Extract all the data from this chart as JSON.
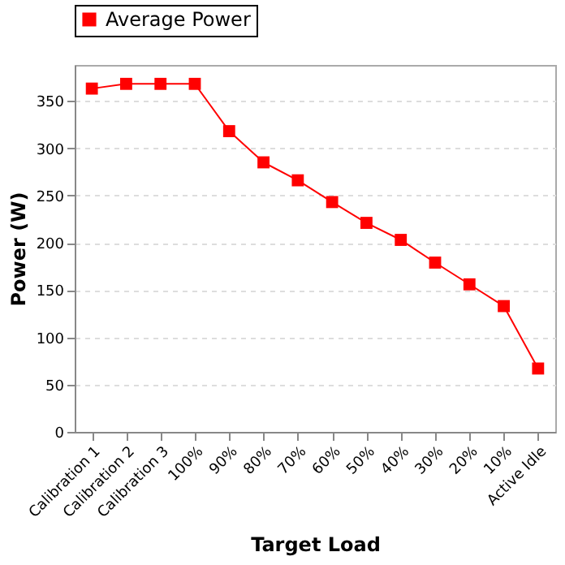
{
  "chart_data": {
    "type": "line",
    "xlabel": "Target Load",
    "ylabel": "Power (W)",
    "categories": [
      "Calibration 1",
      "Calibration 2",
      "Calibration 3",
      "100%",
      "90%",
      "80%",
      "70%",
      "60%",
      "50%",
      "40%",
      "30%",
      "20%",
      "10%",
      "Active Idle"
    ],
    "series": [
      {
        "name": "Average Power",
        "color": "#ff0000",
        "values": [
          363,
          368,
          368,
          368,
          318,
          285,
          266,
          243,
          221,
          203,
          179,
          156,
          133,
          67
        ]
      }
    ],
    "ylim": [
      0,
      388
    ],
    "yticks": [
      0,
      50,
      100,
      150,
      200,
      250,
      300,
      350
    ],
    "grid": "y",
    "legend": "top",
    "marker": "square",
    "line_style": "solid"
  }
}
